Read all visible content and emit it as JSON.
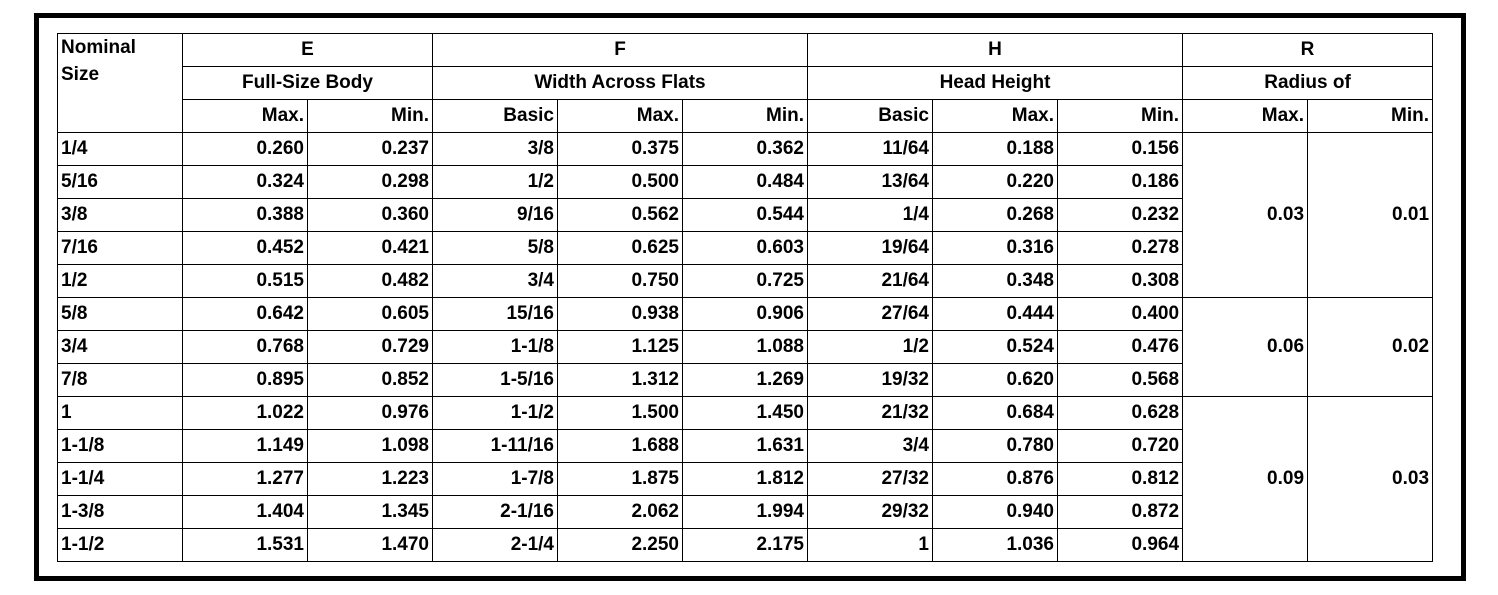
{
  "headers": {
    "nominal": [
      "Nominal",
      "Size"
    ],
    "groups": [
      {
        "letter": "E",
        "desc": "Full-Size Body"
      },
      {
        "letter": "F",
        "desc": "Width Across Flats"
      },
      {
        "letter": "H",
        "desc": "Head Height"
      },
      {
        "letter": "R",
        "desc": "Radius of"
      }
    ],
    "sub": [
      "Max.",
      "Min.",
      "Basic",
      "Max.",
      "Min.",
      "Basic",
      "Max.",
      "Min.",
      "Max.",
      "Min."
    ]
  },
  "rows": [
    [
      "1/4",
      "0.260",
      "0.237",
      "3/8",
      "0.375",
      "0.362",
      "11/64",
      "0.188",
      "0.156"
    ],
    [
      "5/16",
      "0.324",
      "0.298",
      "1/2",
      "0.500",
      "0.484",
      "13/64",
      "0.220",
      "0.186"
    ],
    [
      "3/8",
      "0.388",
      "0.360",
      "9/16",
      "0.562",
      "0.544",
      "1/4",
      "0.268",
      "0.232"
    ],
    [
      "7/16",
      "0.452",
      "0.421",
      "5/8",
      "0.625",
      "0.603",
      "19/64",
      "0.316",
      "0.278"
    ],
    [
      "1/2",
      "0.515",
      "0.482",
      "3/4",
      "0.750",
      "0.725",
      "21/64",
      "0.348",
      "0.308"
    ],
    [
      "5/8",
      "0.642",
      "0.605",
      "15/16",
      "0.938",
      "0.906",
      "27/64",
      "0.444",
      "0.400"
    ],
    [
      "3/4",
      "0.768",
      "0.729",
      "1-1/8",
      "1.125",
      "1.088",
      "1/2",
      "0.524",
      "0.476"
    ],
    [
      "7/8",
      "0.895",
      "0.852",
      "1-5/16",
      "1.312",
      "1.269",
      "19/32",
      "0.620",
      "0.568"
    ],
    [
      "1",
      "1.022",
      "0.976",
      "1-1/2",
      "1.500",
      "1.450",
      "21/32",
      "0.684",
      "0.628"
    ],
    [
      "1-1/8",
      "1.149",
      "1.098",
      "1-11/16",
      "1.688",
      "1.631",
      "3/4",
      "0.780",
      "0.720"
    ],
    [
      "1-1/4",
      "1.277",
      "1.223",
      "1-7/8",
      "1.875",
      "1.812",
      "27/32",
      "0.876",
      "0.812"
    ],
    [
      "1-3/8",
      "1.404",
      "1.345",
      "2-1/16",
      "2.062",
      "1.994",
      "29/32",
      "0.940",
      "0.872"
    ],
    [
      "1-1/2",
      "1.531",
      "1.470",
      "2-1/4",
      "2.250",
      "2.175",
      "1",
      "1.036",
      "0.964"
    ]
  ],
  "radius_groups": [
    {
      "max": "0.03",
      "min": "0.01"
    },
    {
      "max": "0.06",
      "min": "0.02"
    },
    {
      "max": "0.09",
      "min": "0.03"
    }
  ]
}
